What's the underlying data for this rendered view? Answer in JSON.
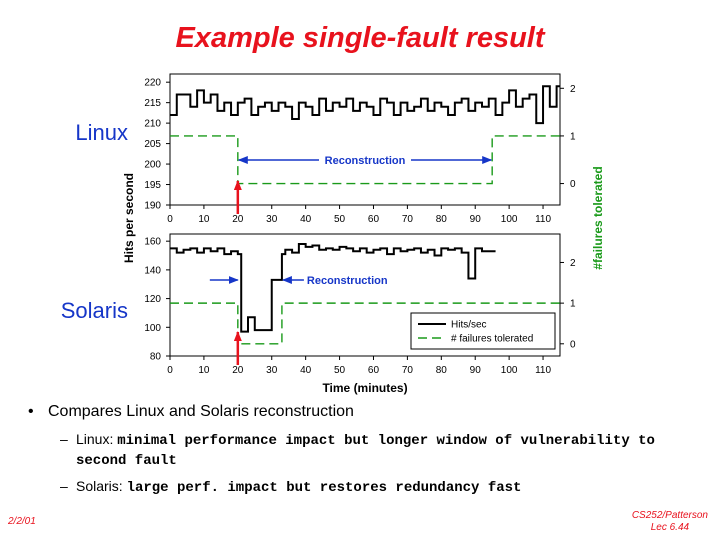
{
  "slide": {
    "title": "Example single-fault result",
    "bullet": "Compares Linux and Solaris reconstruction",
    "sub_bullets": [
      {
        "prefix": "Linux: ",
        "emph": "minimal performance impact but longer window of vulnerability to second fault"
      },
      {
        "prefix": "Solaris: ",
        "emph": "large perf. impact but restores redundancy fast"
      }
    ],
    "footer_date": "2/2/01",
    "footer_course": "CS252/Patterson",
    "footer_lecture": "Lec 6.44"
  },
  "colors": {
    "title": "#e8121d",
    "os_label": "#1636c8",
    "annotation": "#1636c8",
    "failures_line": "#1a9a1a",
    "hits_line": "#000000",
    "event_arrow": "#e8121d"
  },
  "chart_data": [
    {
      "type": "line",
      "label": "Linux",
      "xlabel": "",
      "ylabel": "Hits per second",
      "y2label": "#failures tolerated",
      "xlim": [
        0,
        115
      ],
      "xticks": [
        0,
        10,
        20,
        30,
        40,
        50,
        60,
        70,
        80,
        90,
        100,
        110
      ],
      "ylim": [
        190,
        222
      ],
      "yticks": [
        190,
        195,
        200,
        205,
        210,
        215,
        220
      ],
      "y2lim": [
        -0.45,
        2.3
      ],
      "y2ticks": [
        0,
        1,
        2
      ],
      "annotation": "Reconstruction",
      "reconstruction_span": [
        20,
        95
      ],
      "fault_time": 20,
      "series": [
        {
          "name": "Hits/sec",
          "style": "solid",
          "axis": "left",
          "x": [
            0,
            2,
            4,
            6,
            8,
            10,
            12,
            14,
            16,
            18,
            20,
            22,
            24,
            26,
            28,
            30,
            32,
            34,
            36,
            38,
            40,
            42,
            44,
            46,
            48,
            50,
            52,
            54,
            56,
            58,
            60,
            62,
            64,
            66,
            68,
            70,
            72,
            74,
            76,
            78,
            80,
            82,
            84,
            86,
            88,
            90,
            92,
            94,
            96,
            98,
            100,
            102,
            104,
            106,
            108,
            110,
            112,
            114
          ],
          "values": [
            212,
            217,
            217,
            214,
            218,
            215,
            217,
            213,
            215,
            212,
            215,
            216,
            212,
            214,
            215,
            213,
            215,
            214,
            211,
            215,
            214,
            212,
            216,
            213,
            215,
            214,
            216,
            213,
            215,
            214,
            212,
            216,
            215,
            212,
            215,
            213,
            214,
            216,
            213,
            215,
            214,
            212,
            215,
            216,
            213,
            215,
            214,
            216,
            212,
            215,
            218,
            214,
            216,
            217,
            210,
            219,
            214,
            219
          ]
        },
        {
          "name": "# failures tolerated",
          "style": "dashed",
          "axis": "right",
          "x": [
            0,
            20,
            20,
            95,
            95,
            115
          ],
          "values": [
            1,
            1,
            0,
            0,
            1,
            1
          ]
        }
      ]
    },
    {
      "type": "line",
      "label": "Solaris",
      "xlabel": "Time (minutes)",
      "ylabel": "Hits per second",
      "y2label": "#failures tolerated",
      "xlim": [
        0,
        115
      ],
      "xticks": [
        0,
        10,
        20,
        30,
        40,
        50,
        60,
        70,
        80,
        90,
        100,
        110
      ],
      "ylim": [
        80,
        165
      ],
      "yticks": [
        80,
        100,
        120,
        140,
        160
      ],
      "y2lim": [
        -0.3,
        2.7
      ],
      "y2ticks": [
        0,
        1,
        2
      ],
      "annotation": "Reconstruction",
      "reconstruction_span": [
        20,
        33
      ],
      "fault_time": 20,
      "legend": {
        "position": "bottom-right",
        "entries": [
          "Hits/sec",
          "# failures tolerated"
        ]
      },
      "series": [
        {
          "name": "Hits/sec",
          "style": "solid",
          "axis": "left",
          "x": [
            0,
            2,
            4,
            6,
            8,
            10,
            12,
            14,
            16,
            18,
            20,
            21,
            23,
            25,
            27,
            30,
            31,
            33,
            34,
            36,
            38,
            40,
            42,
            44,
            46,
            48,
            50,
            52,
            54,
            56,
            58,
            60,
            62,
            64,
            66,
            68,
            70,
            72,
            74,
            76,
            78,
            80,
            82,
            84,
            86,
            88,
            90,
            92,
            94
          ],
          "values": [
            155,
            152,
            154,
            155,
            152,
            155,
            153,
            155,
            151,
            153,
            151,
            97,
            107,
            98,
            98,
            133,
            133,
            151,
            154,
            152,
            158,
            156,
            157,
            154,
            155,
            154,
            156,
            155,
            153,
            155,
            152,
            154,
            155,
            151,
            155,
            153,
            154,
            155,
            152,
            154,
            150,
            155,
            154,
            155,
            152,
            134,
            155,
            153,
            153
          ]
        },
        {
          "name": "# failures tolerated",
          "style": "dashed",
          "axis": "right",
          "x": [
            0,
            20,
            20,
            33,
            33,
            115
          ],
          "values": [
            1,
            1,
            0,
            0,
            1,
            1
          ]
        }
      ]
    }
  ]
}
